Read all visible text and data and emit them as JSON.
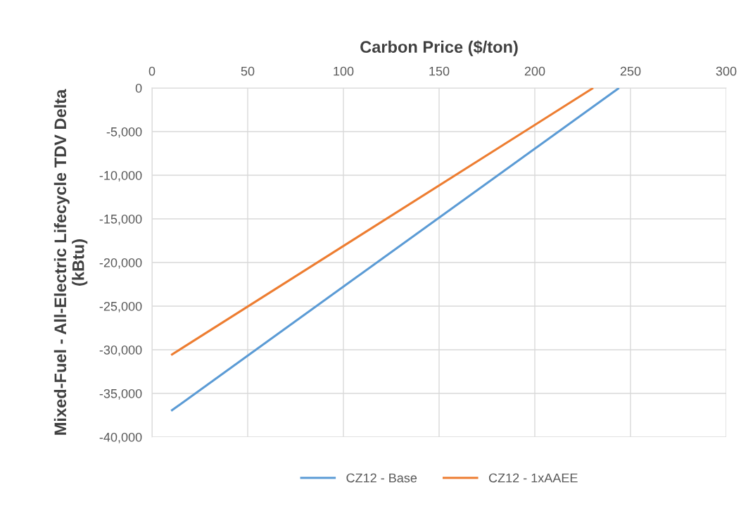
{
  "chart_data": {
    "type": "line",
    "xlabel": "Carbon Price ($/ton)",
    "ylabel": "Mixed-Fuel - All-Electric Lifecycle TDV Delta\n(kBtu)",
    "x": [
      10,
      244
    ],
    "series": [
      {
        "name": "CZ12 - Base",
        "color": "#5b9bd5",
        "values": [
          -37000,
          0
        ]
      },
      {
        "name": "CZ12 - 1xAAEE",
        "color": "#ed7d31",
        "x": [
          10,
          230.5
        ],
        "values": [
          -30600,
          0
        ]
      }
    ],
    "xlim": [
      0,
      300
    ],
    "xticks": [
      0,
      50,
      100,
      150,
      200,
      250,
      300
    ],
    "ylim": [
      -40000,
      0
    ],
    "yticks": [
      {
        "value": -40000,
        "label": "-40,000"
      },
      {
        "value": -35000,
        "label": "-35,000"
      },
      {
        "value": -30000,
        "label": "-30,000"
      },
      {
        "value": -25000,
        "label": "-25,000"
      },
      {
        "value": -20000,
        "label": "-20,000"
      },
      {
        "value": -15000,
        "label": "-15,000"
      },
      {
        "value": -10000,
        "label": "-10,000"
      },
      {
        "value": -5000,
        "label": "-5,000"
      },
      0
    ],
    "grid": true,
    "legend": "bottom",
    "marker": "none",
    "line_style": "solid"
  }
}
